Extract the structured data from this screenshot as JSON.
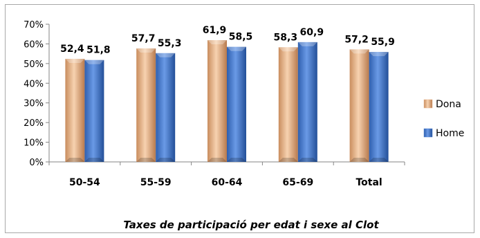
{
  "chart_data": {
    "type": "bar",
    "title": "Taxes de participació per edat i sexe al Clot",
    "categories": [
      "50-54",
      "55-59",
      "60-64",
      "65-69",
      "Total"
    ],
    "series": [
      {
        "name": "Dona",
        "values": [
          52.4,
          57.7,
          61.9,
          58.3,
          57.2
        ],
        "labels": [
          "52,4",
          "57,7",
          "61,9",
          "58,3",
          "57,2"
        ],
        "color": "#e8b48c"
      },
      {
        "name": "Home",
        "values": [
          51.8,
          55.3,
          58.5,
          60.9,
          55.9
        ],
        "labels": [
          "51,8",
          "55,3",
          "58,5",
          "60,9",
          "55,9"
        ],
        "color": "#4a7fd0"
      }
    ],
    "ylim": [
      0,
      70
    ],
    "yticks": [
      "0%",
      "10%",
      "20%",
      "30%",
      "40%",
      "50%",
      "60%",
      "70%"
    ],
    "xlabel": "",
    "ylabel": "",
    "legend_position": "right",
    "grid": false
  }
}
